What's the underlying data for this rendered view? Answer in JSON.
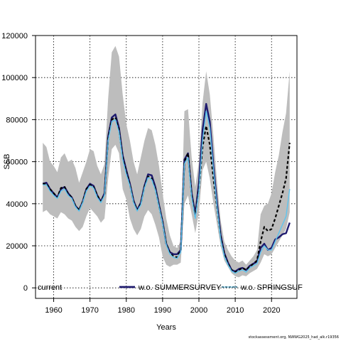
{
  "chart_data": {
    "type": "line",
    "xlabel": "Years",
    "ylabel": "SSB",
    "xlim": [
      1955,
      2027
    ],
    "ylim": [
      -5000,
      120000
    ],
    "x_ticks": [
      1960,
      1970,
      1980,
      1990,
      2000,
      2010,
      2020
    ],
    "y_ticks": [
      0,
      20000,
      40000,
      60000,
      80000,
      100000,
      120000
    ],
    "grid": true,
    "legend_position": "bottom",
    "colors": {
      "band": "#bdbdbd",
      "current": "#000000",
      "summersurvey": "#1e1a6e",
      "springsurvey": "#5ec5ef"
    },
    "x": [
      1957,
      1958,
      1959,
      1960,
      1961,
      1962,
      1963,
      1964,
      1965,
      1966,
      1967,
      1968,
      1969,
      1970,
      1971,
      1972,
      1973,
      1974,
      1975,
      1976,
      1977,
      1978,
      1979,
      1980,
      1981,
      1982,
      1983,
      1984,
      1985,
      1986,
      1987,
      1988,
      1989,
      1990,
      1991,
      1992,
      1993,
      1994,
      1995,
      1996,
      1997,
      1998,
      1999,
      2000,
      2001,
      2002,
      2003,
      2004,
      2005,
      2006,
      2007,
      2008,
      2009,
      2010,
      2011,
      2012,
      2013,
      2014,
      2015,
      2016,
      2017,
      2018,
      2019,
      2020,
      2021,
      2022,
      2023,
      2024,
      2025
    ],
    "band": {
      "upper": [
        69000,
        67000,
        60000,
        58000,
        55000,
        62000,
        64000,
        60000,
        61000,
        57000,
        50000,
        55000,
        60000,
        66000,
        65000,
        58000,
        54000,
        59000,
        90000,
        112000,
        115000,
        110000,
        92000,
        78000,
        70000,
        60000,
        54000,
        62000,
        70000,
        76000,
        75000,
        68000,
        58000,
        45000,
        33000,
        25000,
        20000,
        19000,
        22000,
        84000,
        85000,
        62000,
        48000,
        60000,
        88000,
        103000,
        92000,
        72000,
        50000,
        32000,
        22000,
        18000,
        15000,
        13000,
        12000,
        13000,
        11000,
        13000,
        15000,
        18000,
        35000,
        39000,
        40000,
        45000,
        55000,
        63000,
        74000,
        83000,
        103000
      ],
      "lower": [
        36000,
        37000,
        35000,
        34000,
        33000,
        36000,
        35000,
        33000,
        32000,
        29000,
        27000,
        29000,
        34000,
        38000,
        36000,
        34000,
        31000,
        33000,
        52000,
        66000,
        68000,
        64000,
        47000,
        42000,
        33000,
        28000,
        25000,
        28000,
        34000,
        37000,
        35000,
        30000,
        24000,
        15000,
        11000,
        10000,
        11000,
        11000,
        12000,
        40000,
        44000,
        35000,
        26000,
        36000,
        56000,
        60000,
        52000,
        40000,
        30000,
        20000,
        13000,
        10000,
        7000,
        5500,
        5000,
        6000,
        5500,
        7000,
        8000,
        9000,
        12000,
        16000,
        15000,
        16000,
        19000,
        22000,
        25000,
        28000,
        36000
      ]
    },
    "series": [
      {
        "key": "current",
        "name": "current",
        "values": [
          49500,
          49500,
          47000,
          45000,
          43000,
          47500,
          48000,
          44500,
          43000,
          39000,
          37000,
          41000,
          47000,
          49000,
          48000,
          44000,
          41000,
          44500,
          71000,
          80000,
          81000,
          75000,
          62000,
          55000,
          49000,
          41000,
          37000,
          40000,
          48000,
          53000,
          52000,
          47000,
          39000,
          31000,
          21000,
          16500,
          15000,
          14500,
          18000,
          60000,
          64000,
          44000,
          34000,
          47000,
          67000,
          77000,
          68000,
          52000,
          38000,
          24000,
          16000,
          11500,
          8500,
          7500,
          8500,
          9500,
          8500,
          10000,
          11500,
          13000,
          22000,
          29000,
          27000,
          28000,
          33000,
          39000,
          45000,
          52000,
          69000
        ]
      },
      {
        "key": "summersurvey",
        "name": "w.o. SUMMERSURVEY",
        "values": [
          49500,
          50000,
          47000,
          45000,
          43000,
          47000,
          48000,
          45000,
          43000,
          39000,
          37000,
          41000,
          47000,
          49500,
          48500,
          44000,
          41000,
          45000,
          72000,
          81000,
          82500,
          76000,
          63000,
          56000,
          49500,
          41500,
          37000,
          40500,
          48500,
          54000,
          53500,
          48000,
          39500,
          31500,
          21000,
          17000,
          16000,
          16000,
          18000,
          61000,
          64000,
          45000,
          35000,
          50000,
          75000,
          87500,
          79000,
          58000,
          40000,
          25000,
          16500,
          12000,
          8500,
          7800,
          9000,
          9500,
          8500,
          10500,
          11500,
          12500,
          19000,
          21000,
          18000,
          19000,
          23000,
          24000,
          25500,
          26000,
          31000
        ]
      },
      {
        "key": "springsurvey",
        "name": "w.o. SPRINGSURVEY",
        "values": [
          49000,
          49000,
          46000,
          44000,
          42500,
          46000,
          47000,
          44000,
          42500,
          38500,
          36500,
          40500,
          46000,
          48500,
          47500,
          43000,
          40500,
          44000,
          70000,
          79000,
          80000,
          74000,
          61000,
          54000,
          48500,
          40500,
          36500,
          39500,
          47500,
          52500,
          51500,
          46500,
          38500,
          30500,
          20500,
          16000,
          14500,
          14000,
          17000,
          59000,
          62000,
          43000,
          33000,
          46000,
          70000,
          84000,
          76000,
          56000,
          38000,
          23000,
          15000,
          11000,
          8000,
          7000,
          8000,
          8500,
          7500,
          9500,
          10500,
          11500,
          17000,
          20000,
          18000,
          18000,
          22000,
          26000,
          30000,
          34000,
          47000
        ]
      }
    ]
  },
  "legend": [
    {
      "key": "current",
      "label": "current"
    },
    {
      "key": "summersurvey",
      "label": "w.o. SUMMERSURVEY"
    },
    {
      "key": "springsurvey",
      "label": "w.o. SPRINGSUF"
    }
  ],
  "footer_text": "stockassessment.org, NWWG2025_had_alk.r19356"
}
